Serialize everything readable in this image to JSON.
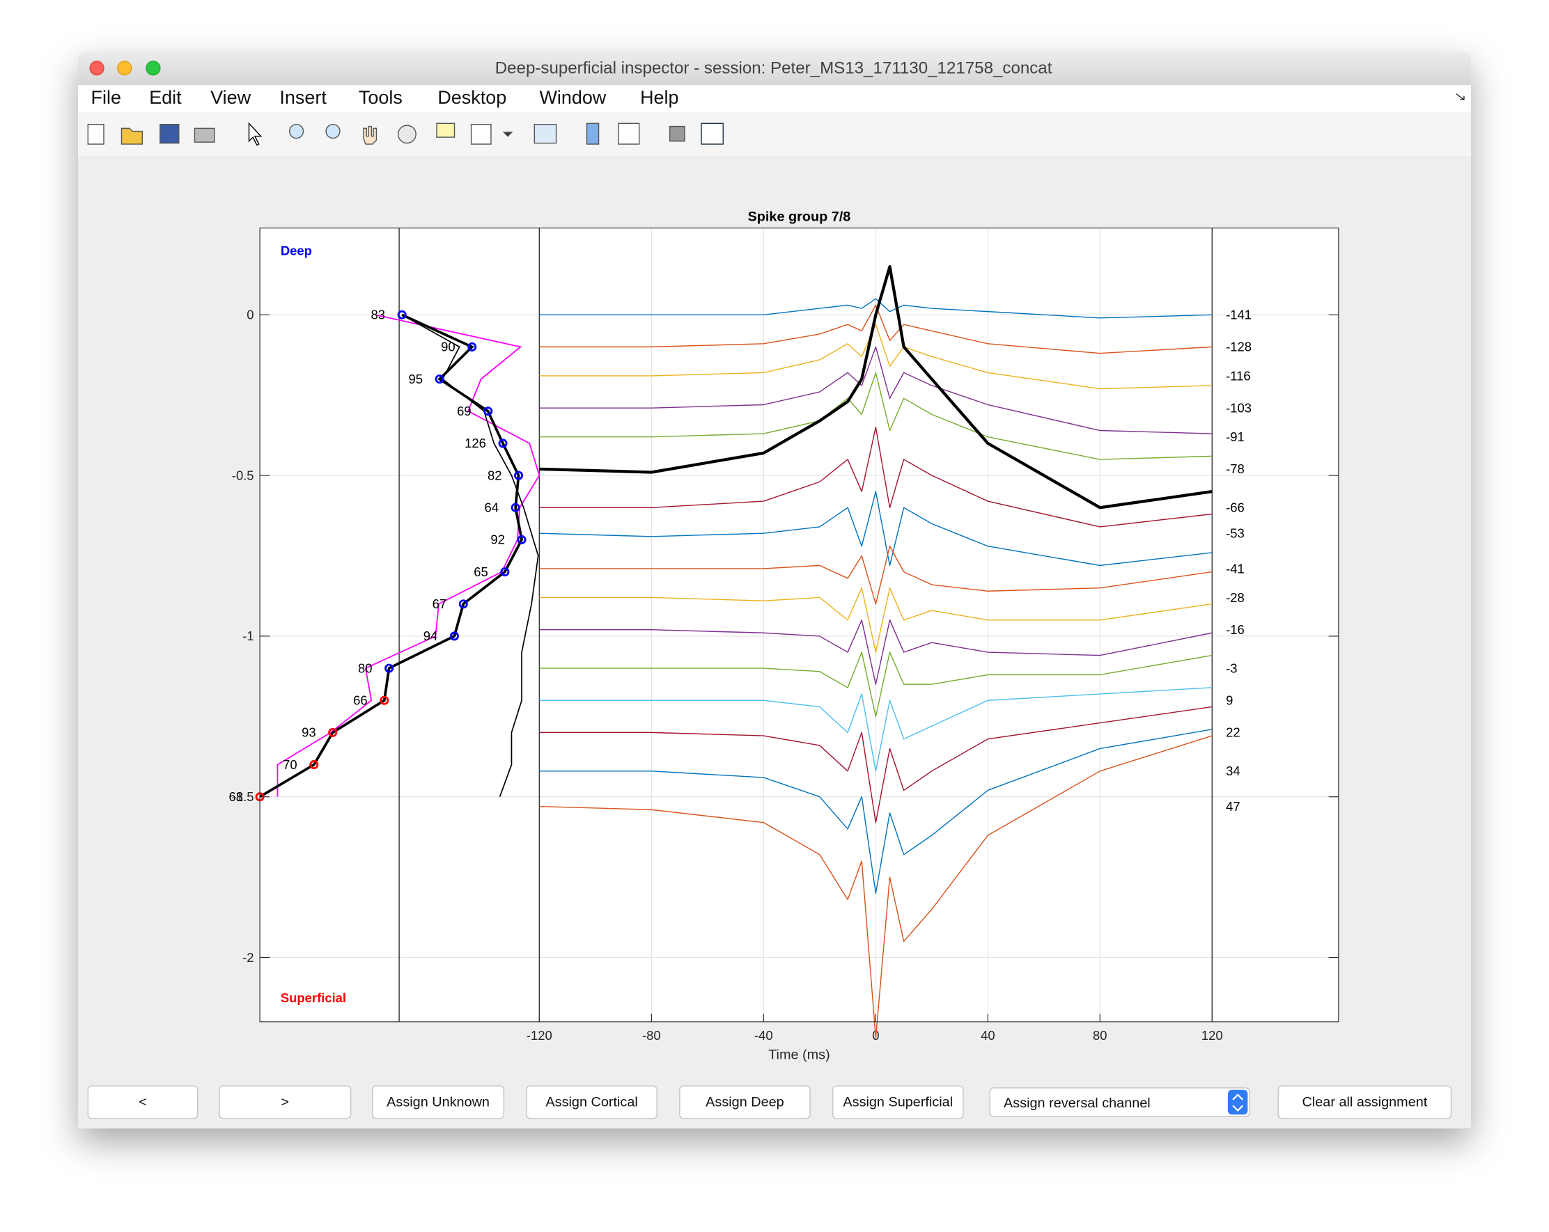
{
  "window": {
    "title": "Deep-superficial inspector - session: Peter_MS13_171130_121758_concat",
    "menu": [
      "File",
      "Edit",
      "View",
      "Insert",
      "Tools",
      "Desktop",
      "Window",
      "Help"
    ]
  },
  "chart_data": {
    "type": "line",
    "title": "Spike group 7/8",
    "xlabel": "Time (ms)",
    "annotations": [
      {
        "text": "Deep",
        "color": "#0000ff"
      },
      {
        "text": "Superficial",
        "color": "#ff0000"
      }
    ],
    "xlim": [
      -219.7,
      165.1
    ],
    "ylim": [
      -2.2,
      0.27
    ],
    "xticks": [
      -120,
      -80,
      -40,
      0,
      40,
      80,
      120
    ],
    "yticks": [
      0,
      -0.5,
      -1,
      -1.5,
      -2
    ],
    "grid": true,
    "vertical_lines": [
      -170,
      -120,
      120
    ],
    "x": [
      -120,
      -80,
      -40,
      -20,
      -10,
      -5,
      0,
      5,
      10,
      20,
      40,
      80,
      120
    ],
    "series": [
      {
        "color": "#0072bd",
        "values": [
          0,
          0,
          0,
          0.02,
          0.03,
          0.02,
          0.05,
          0.01,
          0.03,
          0.02,
          0.01,
          -0.01,
          0
        ]
      },
      {
        "color": "#d95319",
        "values": [
          -0.1,
          -0.1,
          -0.09,
          -0.06,
          -0.03,
          -0.05,
          0.03,
          -0.08,
          -0.03,
          -0.05,
          -0.09,
          -0.12,
          -0.1
        ]
      },
      {
        "color": "#edb120",
        "values": [
          -0.19,
          -0.19,
          -0.18,
          -0.14,
          -0.09,
          -0.13,
          -0.03,
          -0.16,
          -0.1,
          -0.13,
          -0.18,
          -0.23,
          -0.22
        ]
      },
      {
        "color": "#7e2f8e",
        "values": [
          -0.29,
          -0.29,
          -0.28,
          -0.24,
          -0.18,
          -0.22,
          -0.1,
          -0.26,
          -0.18,
          -0.22,
          -0.28,
          -0.36,
          -0.37
        ]
      },
      {
        "color": "#77ac30",
        "values": [
          -0.38,
          -0.38,
          -0.37,
          -0.33,
          -0.26,
          -0.31,
          -0.18,
          -0.36,
          -0.26,
          -0.31,
          -0.38,
          -0.45,
          -0.44
        ]
      },
      {
        "color": "#000000",
        "width": 3,
        "values": [
          -0.48,
          -0.49,
          -0.43,
          -0.33,
          -0.27,
          -0.2,
          0.0,
          0.15,
          -0.1,
          -0.2,
          -0.4,
          -0.6,
          -0.55
        ]
      },
      {
        "color": "#a2142f",
        "values": [
          -0.6,
          -0.6,
          -0.58,
          -0.52,
          -0.45,
          -0.55,
          -0.35,
          -0.6,
          -0.45,
          -0.5,
          -0.58,
          -0.66,
          -0.62
        ]
      },
      {
        "color": "#0072bd",
        "values": [
          -0.68,
          -0.69,
          -0.68,
          -0.66,
          -0.6,
          -0.72,
          -0.55,
          -0.78,
          -0.6,
          -0.65,
          -0.72,
          -0.78,
          -0.74
        ]
      },
      {
        "color": "#d95319",
        "values": [
          -0.79,
          -0.79,
          -0.79,
          -0.78,
          -0.82,
          -0.75,
          -0.9,
          -0.72,
          -0.8,
          -0.84,
          -0.86,
          -0.85,
          -0.8
        ]
      },
      {
        "color": "#edb120",
        "values": [
          -0.88,
          -0.88,
          -0.89,
          -0.88,
          -0.95,
          -0.85,
          -1.05,
          -0.85,
          -0.95,
          -0.92,
          -0.95,
          -0.95,
          -0.9
        ]
      },
      {
        "color": "#7e2f8e",
        "values": [
          -0.98,
          -0.98,
          -0.99,
          -1.0,
          -1.05,
          -0.95,
          -1.15,
          -0.95,
          -1.05,
          -1.02,
          -1.05,
          -1.06,
          -0.99
        ]
      },
      {
        "color": "#77ac30",
        "values": [
          -1.1,
          -1.1,
          -1.1,
          -1.11,
          -1.16,
          -1.05,
          -1.25,
          -1.05,
          -1.15,
          -1.15,
          -1.12,
          -1.12,
          -1.06
        ]
      },
      {
        "color": "#4dbeee",
        "values": [
          -1.2,
          -1.2,
          -1.2,
          -1.22,
          -1.3,
          -1.18,
          -1.42,
          -1.2,
          -1.32,
          -1.28,
          -1.2,
          -1.18,
          -1.16
        ]
      },
      {
        "color": "#a2142f",
        "values": [
          -1.3,
          -1.3,
          -1.31,
          -1.34,
          -1.42,
          -1.3,
          -1.58,
          -1.35,
          -1.48,
          -1.42,
          -1.32,
          -1.27,
          -1.22
        ]
      },
      {
        "color": "#0072bd",
        "values": [
          -1.42,
          -1.42,
          -1.44,
          -1.5,
          -1.6,
          -1.5,
          -1.8,
          -1.55,
          -1.68,
          -1.62,
          -1.48,
          -1.35,
          -1.29
        ]
      },
      {
        "color": "#d95319",
        "values": [
          -1.53,
          -1.54,
          -1.58,
          -1.68,
          -1.82,
          -1.7,
          -2.25,
          -1.75,
          -1.95,
          -1.85,
          -1.62,
          -1.42,
          -1.31
        ]
      }
    ],
    "channel_labels": [
      -141,
      -128,
      -116,
      -103,
      -91,
      -78,
      -66,
      -53,
      -41,
      -28,
      -16,
      -3,
      9,
      22,
      34,
      47
    ],
    "profiles": [
      {
        "color": "#ff00ff",
        "width": 1.3,
        "x": [
          -178.5,
          -126.7,
          -140.8,
          -145.4,
          -123.5,
          -120,
          -127.0,
          -127.8,
          -133.4,
          -155.9,
          -157.0,
          -182.0,
          -179.9,
          -194.4,
          -213.4,
          -213.4
        ],
        "y": [
          0,
          -0.1,
          -0.2,
          -0.3,
          -0.4,
          -0.5,
          -0.6,
          -0.7,
          -0.8,
          -0.9,
          -1.0,
          -1.1,
          -1.2,
          -1.3,
          -1.4,
          -1.5
        ]
      },
      {
        "color": "#000000",
        "width": 1.2,
        "x": [
          -169.0,
          -148.5,
          -154.5,
          -139.7,
          -136.2,
          -129.9,
          -125.6,
          -120.4,
          -122.8,
          -126.3,
          -126.3,
          -129.9,
          -129.9,
          -134.1
        ],
        "y": [
          0,
          -0.1,
          -0.2,
          -0.3,
          -0.4,
          -0.5,
          -0.6,
          -0.75,
          -0.9,
          -1.05,
          -1.2,
          -1.3,
          -1.4,
          -1.5
        ]
      },
      {
        "color": "#000000",
        "width": 2.6,
        "x": [
          -169.0,
          -144.0,
          -155.6,
          -138.3,
          -133.0,
          -127.4,
          -128.5,
          -126.3,
          -132.3,
          -147.1,
          -150.3,
          -173.6,
          -175.3,
          -193.7,
          -200.4,
          -219.7
        ],
        "y": [
          0,
          -0.1,
          -0.2,
          -0.3,
          -0.4,
          -0.5,
          -0.6,
          -0.7,
          -0.8,
          -0.9,
          -1.0,
          -1.1,
          -1.2,
          -1.3,
          -1.4,
          -1.5
        ],
        "labels": [
          83,
          90,
          95,
          69,
          126,
          82,
          64,
          92,
          65,
          67,
          94,
          80,
          66,
          93,
          70,
          68
        ],
        "colors": [
          "#0000ff",
          "#0000ff",
          "#0000ff",
          "#0000ff",
          "#0000ff",
          "#0000ff",
          "#0000ff",
          "#0000ff",
          "#0000ff",
          "#0000ff",
          "#0000ff",
          "#0000ff",
          "#ff0000",
          "#ff0000",
          "#ff0000",
          "#ff0000"
        ]
      }
    ]
  },
  "controls": {
    "buttons": [
      "<",
      ">",
      "Assign Unknown",
      "Assign Cortical",
      "Assign Deep",
      "Assign Superficial"
    ],
    "dropdown": "Assign reversal channel",
    "clear": "Clear all assignment"
  }
}
